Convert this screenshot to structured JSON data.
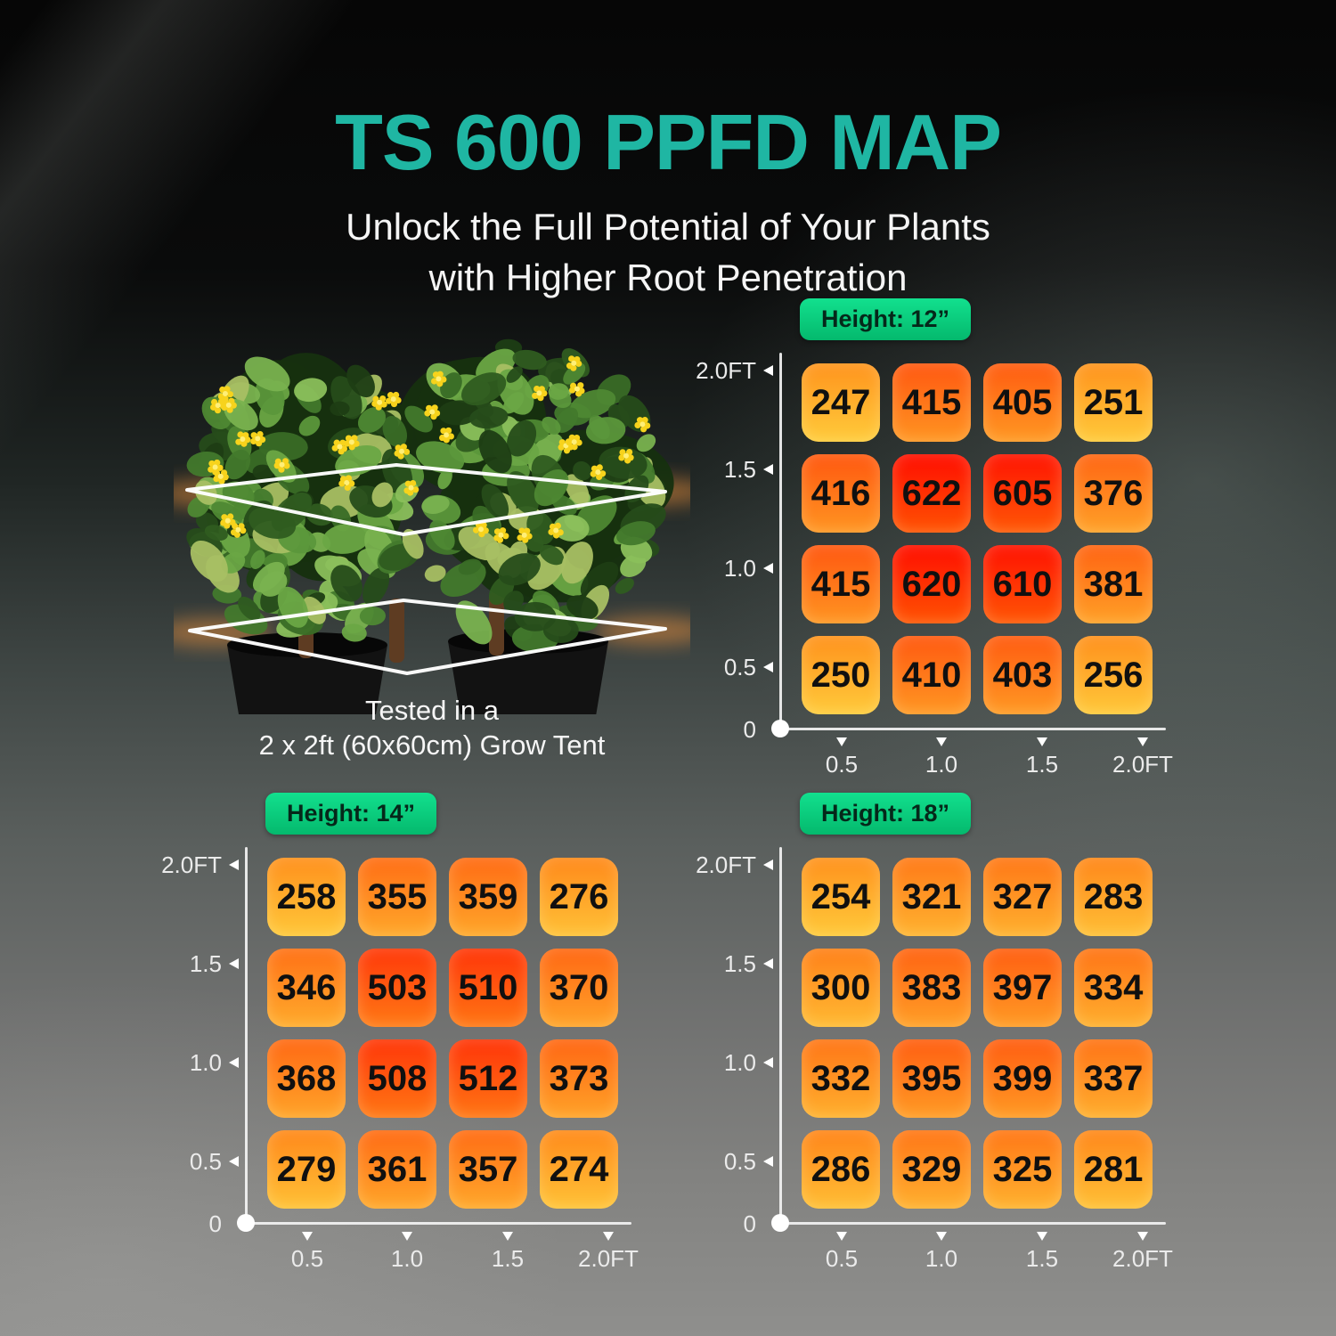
{
  "header": {
    "title": "TS 600 PPFD MAP",
    "subtitle_line1": "Unlock the Full Potential of Your Plants",
    "subtitle_line2": "with Higher Root Penetration"
  },
  "figure": {
    "caption_line1": "Tested in a",
    "caption_line2": "2 x 2ft (60x60cm) Grow Tent"
  },
  "colors": {
    "title_accent": "#1fb6a3",
    "badge_green_top": "#12e08e",
    "badge_green_bottom": "#04b96d",
    "badge_text": "#05281a",
    "cell_value_text": "#101010",
    "cell_low": "#ff961e",
    "cell_low_bottom": "#ffcd3c",
    "cell_high": "#ff1400",
    "cell_high_bottom": "#ff5000",
    "axis": "#f3f3f3",
    "tick_label": "#ebebeb"
  },
  "chart_data": [
    {
      "type": "heatmap",
      "title": "Height: 12”",
      "x_ticks": [
        "0.5",
        "1.0",
        "1.5",
        "2.0FT"
      ],
      "y_ticks": [
        "2.0FT",
        "1.5",
        "1.0",
        "0.5"
      ],
      "origin_label": "0",
      "x_range_ft": [
        0,
        2
      ],
      "y_range_ft": [
        0,
        2
      ],
      "rows": [
        [
          247,
          415,
          405,
          251
        ],
        [
          416,
          622,
          605,
          376
        ],
        [
          415,
          620,
          610,
          381
        ],
        [
          250,
          410,
          403,
          256
        ]
      ]
    },
    {
      "type": "heatmap",
      "title": "Height: 14”",
      "x_ticks": [
        "0.5",
        "1.0",
        "1.5",
        "2.0FT"
      ],
      "y_ticks": [
        "2.0FT",
        "1.5",
        "1.0",
        "0.5"
      ],
      "origin_label": "0",
      "x_range_ft": [
        0,
        2
      ],
      "y_range_ft": [
        0,
        2
      ],
      "rows": [
        [
          258,
          355,
          359,
          276
        ],
        [
          346,
          503,
          510,
          370
        ],
        [
          368,
          508,
          512,
          373
        ],
        [
          279,
          361,
          357,
          274
        ]
      ]
    },
    {
      "type": "heatmap",
      "title": "Height: 18”",
      "x_ticks": [
        "0.5",
        "1.0",
        "1.5",
        "2.0FT"
      ],
      "y_ticks": [
        "2.0FT",
        "1.5",
        "1.0",
        "0.5"
      ],
      "origin_label": "0",
      "x_range_ft": [
        0,
        2
      ],
      "y_range_ft": [
        0,
        2
      ],
      "rows": [
        [
          254,
          321,
          327,
          283
        ],
        [
          300,
          383,
          397,
          334
        ],
        [
          332,
          395,
          399,
          337
        ],
        [
          286,
          329,
          325,
          281
        ]
      ]
    }
  ]
}
